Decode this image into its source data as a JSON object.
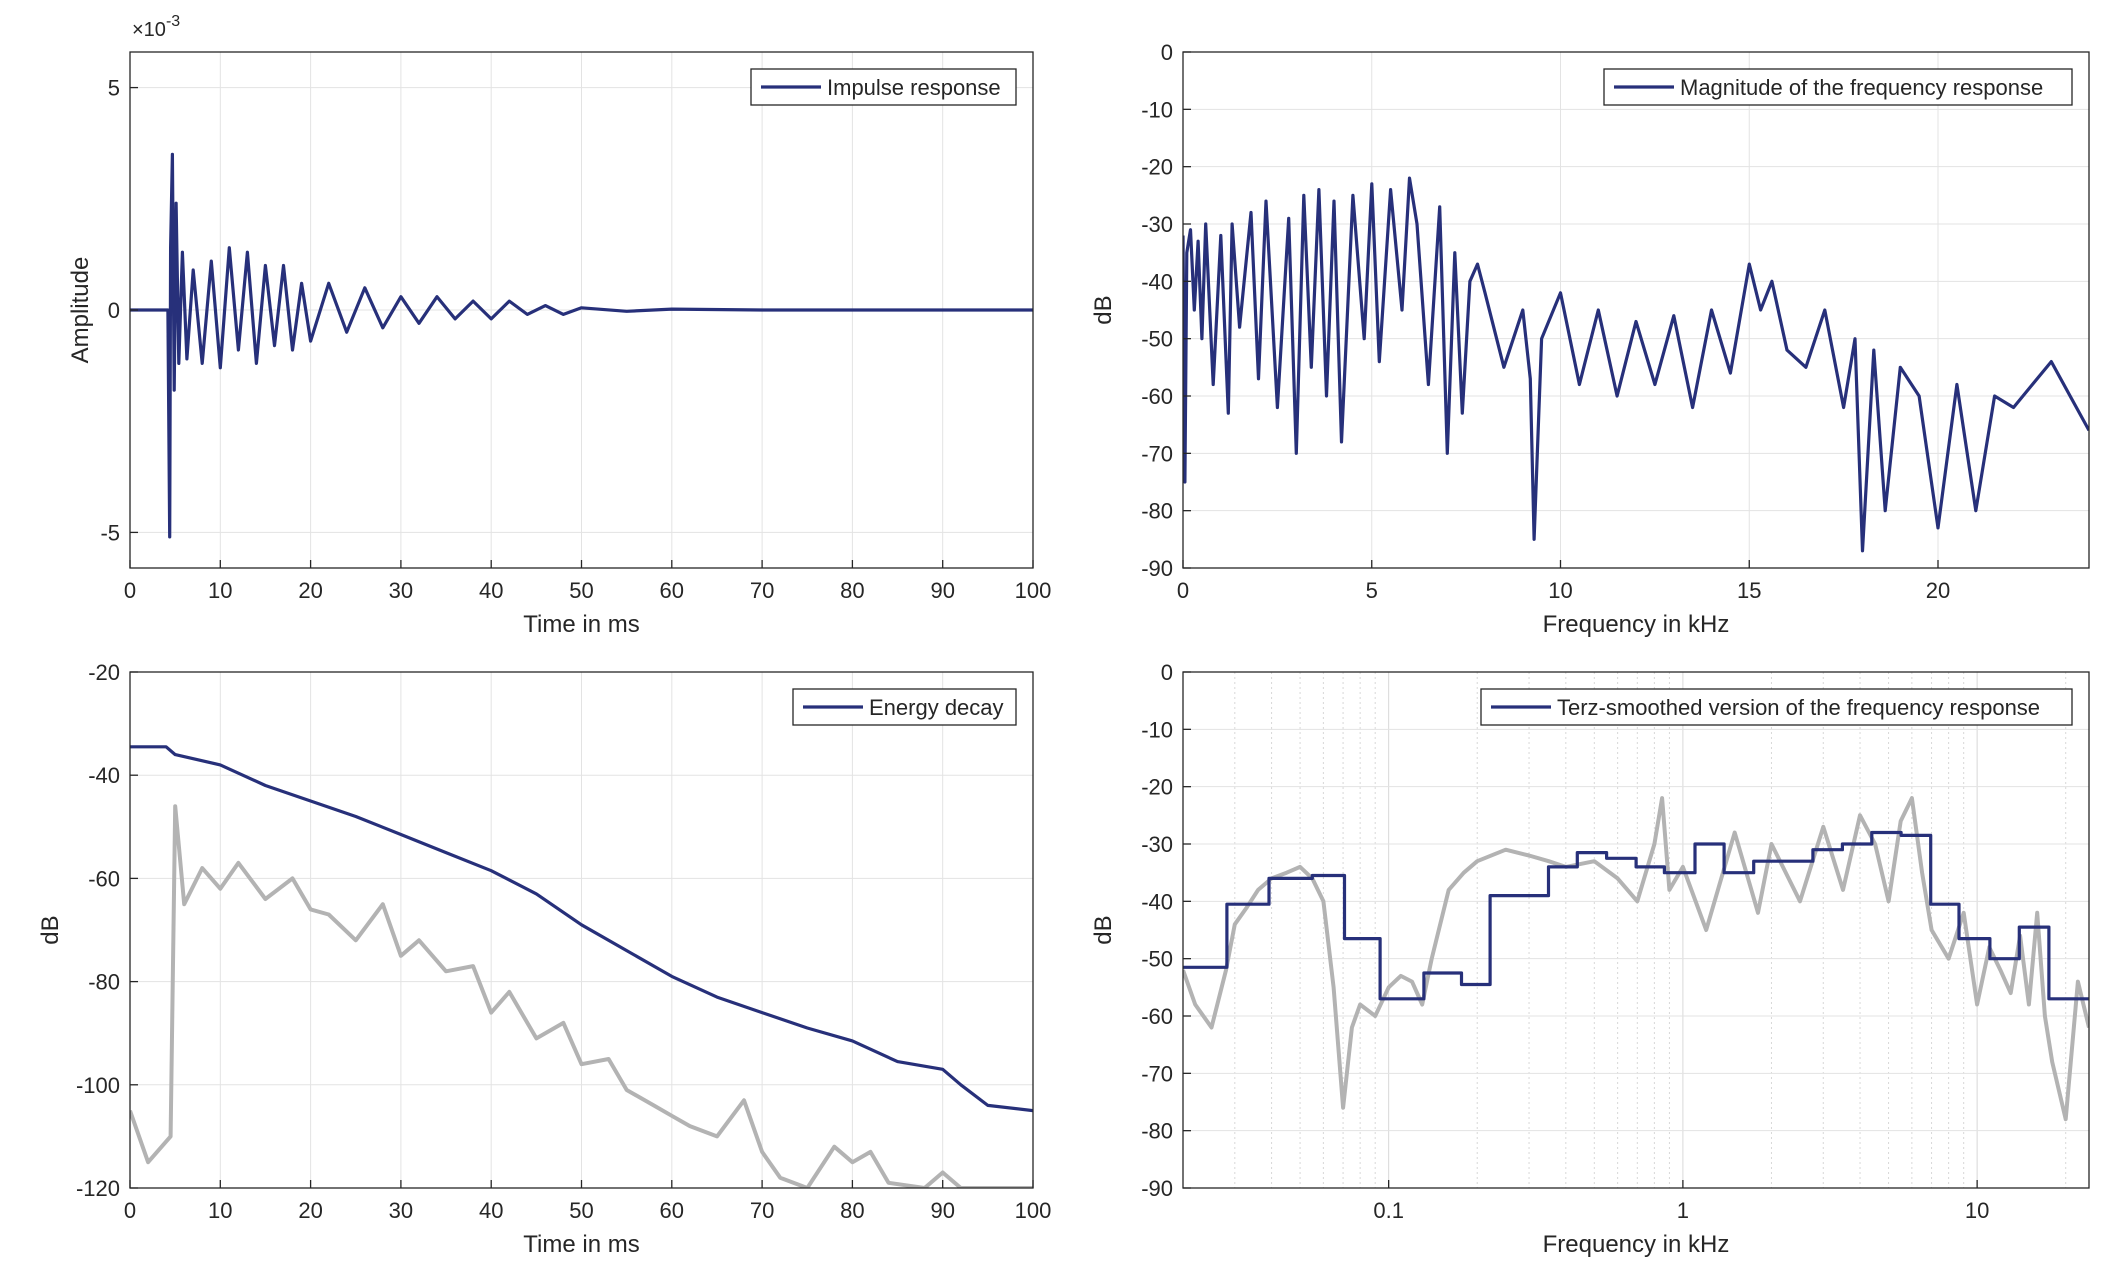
{
  "colors": {
    "series": "#27307a",
    "background_series": "#b3b3b3",
    "grid": "#e3e3e3",
    "axis": "#262626"
  },
  "chart_data": [
    {
      "id": "impulse",
      "type": "line",
      "xlabel": "Time in ms",
      "ylabel": "Amplitude",
      "xlim": [
        0,
        100
      ],
      "ylim": [
        -0.0058,
        0.0058
      ],
      "x_ticks": [
        0,
        10,
        20,
        30,
        40,
        50,
        60,
        70,
        80,
        90,
        100
      ],
      "x_tick_labels": [
        "0",
        "10",
        "20",
        "30",
        "40",
        "50",
        "60",
        "70",
        "80",
        "90",
        "100"
      ],
      "y_ticks": [
        -0.005,
        0,
        0.005
      ],
      "y_tick_labels": [
        "-5",
        "0",
        "5"
      ],
      "y_exponent_label": "×10",
      "y_exponent_power": "-3",
      "grid": true,
      "legend_position": "top-right",
      "series": [
        {
          "name": "Impulse response",
          "x": [
            0,
            4.2,
            4.4,
            4.5,
            4.7,
            4.9,
            5.1,
            5.4,
            5.8,
            6.3,
            7,
            8,
            9,
            10,
            11,
            12,
            13,
            14,
            15,
            16,
            17,
            18,
            19,
            20,
            22,
            24,
            26,
            28,
            30,
            32,
            34,
            36,
            38,
            40,
            42,
            44,
            46,
            48,
            50,
            55,
            60,
            70,
            80,
            90,
            100
          ],
          "y": [
            0,
            0,
            -0.0051,
            0.0014,
            0.0035,
            -0.0018,
            0.0024,
            -0.0012,
            0.0013,
            -0.0011,
            0.0009,
            -0.0012,
            0.0011,
            -0.0013,
            0.0014,
            -0.0009,
            0.0013,
            -0.0012,
            0.001,
            -0.0008,
            0.001,
            -0.0009,
            0.0006,
            -0.0007,
            0.0006,
            -0.0005,
            0.0005,
            -0.0004,
            0.0003,
            -0.0003,
            0.0003,
            -0.0002,
            0.0002,
            -0.0002,
            0.0002,
            -0.0001,
            0.0001,
            -0.0001,
            5e-05,
            -3e-05,
            2e-05,
            0,
            0,
            0,
            0
          ]
        }
      ]
    },
    {
      "id": "magnitude",
      "type": "line",
      "xlabel": "Frequency in kHz",
      "ylabel": "dB",
      "xlim": [
        0,
        24
      ],
      "ylim": [
        -90,
        0
      ],
      "x_ticks": [
        0,
        5,
        10,
        15,
        20
      ],
      "x_tick_labels": [
        "0",
        "5",
        "10",
        "15",
        "20"
      ],
      "y_ticks": [
        0,
        -10,
        -20,
        -30,
        -40,
        -50,
        -60,
        -70,
        -80,
        -90
      ],
      "y_tick_labels": [
        "0",
        "-10",
        "-20",
        "-30",
        "-40",
        "-50",
        "-60",
        "-70",
        "-80",
        "-90"
      ],
      "grid": true,
      "legend_position": "top-right",
      "series": [
        {
          "name": "Magnitude of the frequency response",
          "x": [
            0,
            0.05,
            0.1,
            0.2,
            0.3,
            0.4,
            0.5,
            0.6,
            0.8,
            1,
            1.2,
            1.3,
            1.5,
            1.8,
            2,
            2.2,
            2.5,
            2.8,
            3,
            3.2,
            3.4,
            3.6,
            3.8,
            4,
            4.2,
            4.5,
            4.8,
            5,
            5.2,
            5.5,
            5.8,
            6,
            6.2,
            6.5,
            6.8,
            7,
            7.2,
            7.4,
            7.6,
            7.8,
            8,
            8.5,
            9,
            9.2,
            9.3,
            9.5,
            10,
            10.5,
            11,
            11.5,
            12,
            12.5,
            13,
            13.5,
            14,
            14.5,
            15,
            15.3,
            15.6,
            16,
            16.5,
            17,
            17.5,
            17.8,
            18,
            18.3,
            18.6,
            19,
            19.5,
            20,
            20.5,
            21,
            21.5,
            22,
            22.5,
            23,
            23.5,
            24
          ],
          "y": [
            -32,
            -75,
            -35,
            -31,
            -45,
            -33,
            -50,
            -30,
            -58,
            -32,
            -63,
            -30,
            -48,
            -28,
            -57,
            -26,
            -62,
            -29,
            -70,
            -25,
            -55,
            -24,
            -60,
            -26,
            -68,
            -25,
            -50,
            -23,
            -54,
            -24,
            -45,
            -22,
            -30,
            -58,
            -27,
            -70,
            -35,
            -63,
            -40,
            -37,
            -42,
            -55,
            -45,
            -57,
            -85,
            -50,
            -42,
            -58,
            -45,
            -60,
            -47,
            -58,
            -46,
            -62,
            -45,
            -56,
            -37,
            -45,
            -40,
            -52,
            -55,
            -45,
            -62,
            -50,
            -87,
            -52,
            -80,
            -55,
            -60,
            -83,
            -58,
            -80,
            -60,
            -62,
            -58,
            -54,
            -60,
            -66
          ]
        }
      ]
    },
    {
      "id": "energy",
      "type": "line",
      "xlabel": "Time in ms",
      "ylabel": "dB",
      "xlim": [
        0,
        100
      ],
      "ylim": [
        -120,
        -20
      ],
      "x_ticks": [
        0,
        10,
        20,
        30,
        40,
        50,
        60,
        70,
        80,
        90,
        100
      ],
      "x_tick_labels": [
        "0",
        "10",
        "20",
        "30",
        "40",
        "50",
        "60",
        "70",
        "80",
        "90",
        "100"
      ],
      "y_ticks": [
        -20,
        -40,
        -60,
        -80,
        -100,
        -120
      ],
      "y_tick_labels": [
        "-20",
        "-40",
        "-60",
        "-80",
        "-100",
        "-120"
      ],
      "grid": true,
      "legend_position": "top-right",
      "series": [
        {
          "name": "Energy decay",
          "x": [
            0,
            4,
            5,
            10,
            15,
            20,
            25,
            30,
            35,
            40,
            45,
            50,
            55,
            60,
            65,
            70,
            75,
            80,
            85,
            90,
            92,
            95,
            100
          ],
          "y": [
            -34.5,
            -34.5,
            -36,
            -38,
            -42,
            -45,
            -48,
            -51.5,
            -55,
            -58.5,
            -63,
            -69,
            -74,
            -79,
            -83,
            -86,
            -89,
            -91.5,
            -95.5,
            -97,
            -100,
            -104,
            -105
          ]
        },
        {
          "name": "",
          "x": [
            0,
            2,
            4.5,
            5,
            6,
            8,
            10,
            12,
            15,
            18,
            20,
            22,
            25,
            28,
            30,
            32,
            35,
            38,
            40,
            42,
            45,
            48,
            50,
            53,
            55,
            58,
            60,
            62,
            65,
            68,
            70,
            72,
            75,
            78,
            80,
            82,
            84,
            88,
            90,
            92,
            95,
            100
          ],
          "y": [
            -105,
            -115,
            -110,
            -46,
            -65,
            -58,
            -62,
            -57,
            -64,
            -60,
            -66,
            -67,
            -72,
            -65,
            -75,
            -72,
            -78,
            -77,
            -86,
            -82,
            -91,
            -88,
            -96,
            -95,
            -101,
            -104,
            -106,
            -108,
            -110,
            -103,
            -113,
            -118,
            -120,
            -112,
            -115,
            -113,
            -119,
            -120,
            -117,
            -120,
            -120,
            -120
          ]
        }
      ]
    },
    {
      "id": "terz",
      "type": "line",
      "xlabel": "Frequency in kHz",
      "ylabel": "dB",
      "x_scale": "log",
      "xlim": [
        0.02,
        24
      ],
      "ylim": [
        -90,
        0
      ],
      "x_ticks": [
        0.1,
        1,
        10
      ],
      "x_tick_labels": [
        "0.1",
        "1",
        "10"
      ],
      "y_ticks": [
        0,
        -10,
        -20,
        -30,
        -40,
        -50,
        -60,
        -70,
        -80,
        -90
      ],
      "y_tick_labels": [
        "0",
        "-10",
        "-20",
        "-30",
        "-40",
        "-50",
        "-60",
        "-70",
        "-80",
        "-90"
      ],
      "grid": true,
      "legend_position": "top-right",
      "series": [
        {
          "name": "Terz-smoothed version of the frequency response",
          "x": [
            0.02,
            0.0282,
            0.0282,
            0.0392,
            0.0392,
            0.055,
            0.055,
            0.0708,
            0.0708,
            0.0935,
            0.0935,
            0.1318,
            0.1318,
            0.1768,
            0.1768,
            0.2212,
            0.2212,
            0.3492,
            0.3492,
            0.4375,
            0.4375,
            0.5506,
            0.5506,
            0.6931,
            0.6931,
            0.8654,
            0.8654,
            1.099,
            1.099,
            1.38,
            1.38,
            1.74,
            1.74,
            2.767,
            2.767,
            3.483,
            3.483,
            4.386,
            4.386,
            5.517,
            5.517,
            6.956,
            6.956,
            8.68,
            8.68,
            11.05,
            11.05,
            13.91,
            13.91,
            17.53,
            17.53,
            24
          ],
          "y": [
            -51.5,
            -51.5,
            -40.5,
            -40.5,
            -36,
            -36,
            -35.5,
            -35.5,
            -46.5,
            -46.5,
            -57,
            -57,
            -52.5,
            -52.5,
            -54.5,
            -54.5,
            -39,
            -39,
            -34,
            -34,
            -31.5,
            -31.5,
            -32.5,
            -32.5,
            -34,
            -34,
            -35,
            -35,
            -30,
            -30,
            -35,
            -35,
            -33,
            -33,
            -31,
            -31,
            -30,
            -30,
            -28,
            -28,
            -28.5,
            -28.5,
            -40.5,
            -40.5,
            -46.5,
            -46.5,
            -50,
            -50,
            -44.5,
            -44.5,
            -57,
            -57
          ]
        },
        {
          "name": "",
          "x": [
            0.02,
            0.022,
            0.025,
            0.028,
            0.03,
            0.033,
            0.036,
            0.04,
            0.045,
            0.05,
            0.055,
            0.06,
            0.065,
            0.07,
            0.075,
            0.08,
            0.09,
            0.1,
            0.11,
            0.12,
            0.13,
            0.14,
            0.16,
            0.18,
            0.2,
            0.25,
            0.3,
            0.35,
            0.4,
            0.5,
            0.6,
            0.7,
            0.8,
            0.85,
            0.9,
            1,
            1.2,
            1.5,
            1.8,
            2,
            2.5,
            3,
            3.5,
            4,
            4.5,
            5,
            5.5,
            6,
            6.5,
            7,
            8,
            9,
            10,
            11,
            12,
            13,
            14,
            15,
            16,
            17,
            18,
            20,
            22,
            24
          ],
          "y": [
            -52,
            -58,
            -62,
            -52,
            -44,
            -41,
            -38,
            -36,
            -35,
            -34,
            -36,
            -40,
            -55,
            -76,
            -62,
            -58,
            -60,
            -55,
            -53,
            -54,
            -58,
            -50,
            -38,
            -35,
            -33,
            -31,
            -32,
            -33,
            -34,
            -33,
            -36,
            -40,
            -30,
            -22,
            -38,
            -34,
            -45,
            -28,
            -42,
            -30,
            -40,
            -27,
            -38,
            -25,
            -30,
            -40,
            -26,
            -22,
            -35,
            -45,
            -50,
            -42,
            -58,
            -48,
            -52,
            -56,
            -46,
            -58,
            -42,
            -60,
            -68,
            -78,
            -54,
            -62
          ]
        }
      ]
    }
  ]
}
